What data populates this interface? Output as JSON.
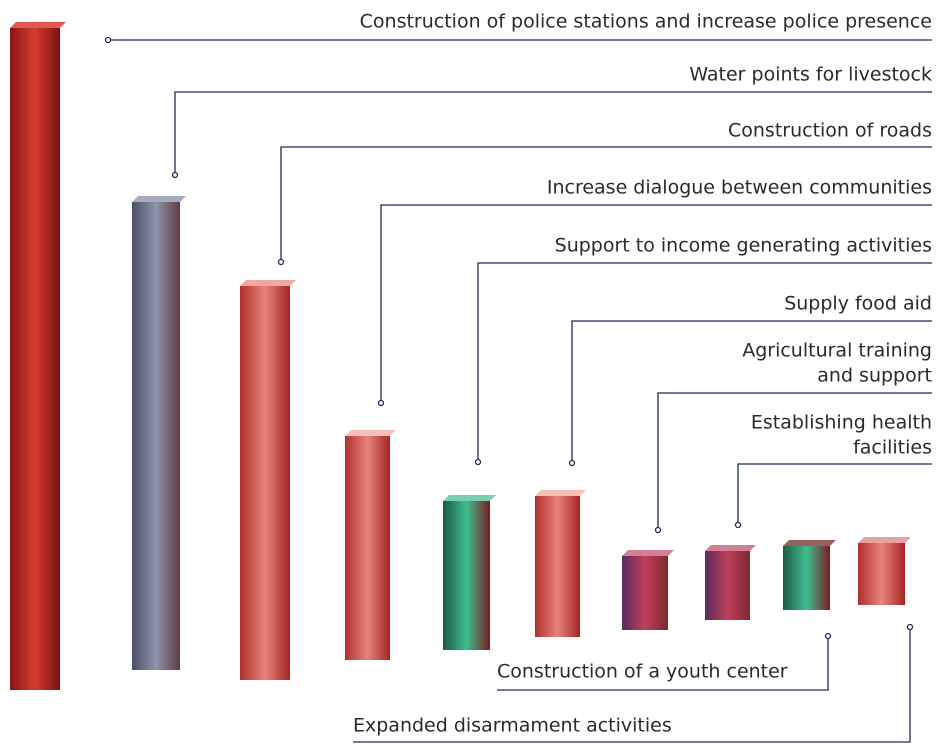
{
  "items": [
    {
      "label": "Construction of police stations and increase police presence"
    },
    {
      "label": "Water points for livestock"
    },
    {
      "label": "Construction of roads"
    },
    {
      "label": "Increase dialogue between communities"
    },
    {
      "label": "Support to income generating activities"
    },
    {
      "label": "Supply food aid"
    },
    {
      "lines": [
        "Agricultural training",
        "and support"
      ]
    },
    {
      "lines": [
        "Establishing health",
        "facilities"
      ]
    },
    {
      "label": "Construction of a youth center"
    },
    {
      "label": "Expanded disarmament activities"
    }
  ]
}
